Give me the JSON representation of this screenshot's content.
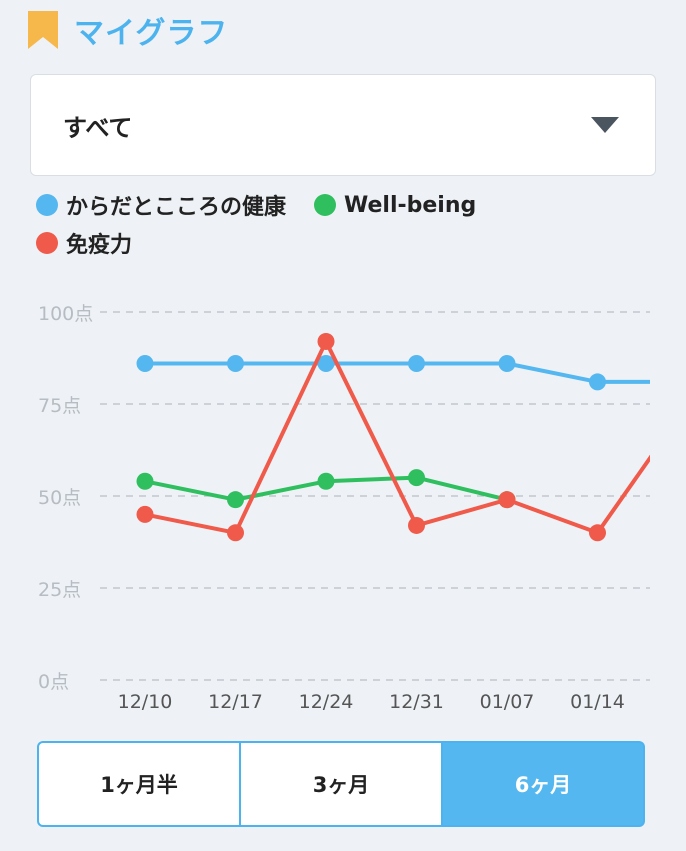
{
  "header": {
    "title": "マイグラフ",
    "icon": "bookmark-icon",
    "icon_color": "#f7b84b"
  },
  "category_select": {
    "value": "すべて"
  },
  "range_tabs": [
    {
      "label": "1ヶ月半",
      "active": false
    },
    {
      "label": "3ヶ月",
      "active": false
    },
    {
      "label": "6ヶ月",
      "active": true
    }
  ],
  "chart_data": {
    "type": "line",
    "x": [
      "12/10",
      "12/17",
      "12/24",
      "12/31",
      "01/07",
      "01/14",
      ""
    ],
    "ylim": [
      0,
      100
    ],
    "y_ticks": [
      {
        "value": 0,
        "label": "0点"
      },
      {
        "value": 25,
        "label": "25点"
      },
      {
        "value": 50,
        "label": "50点"
      },
      {
        "value": 75,
        "label": "75点"
      },
      {
        "value": 100,
        "label": "100点"
      }
    ],
    "grid": true,
    "legend_position": "top-left",
    "series": [
      {
        "name": "からだとこころの健康",
        "color": "#55b7f0",
        "values": [
          86,
          86,
          86,
          86,
          86,
          81,
          81
        ]
      },
      {
        "name": "Well-being",
        "color": "#2fbf5f",
        "values": [
          54,
          49,
          54,
          55,
          49,
          null,
          null
        ]
      },
      {
        "name": "免疫力",
        "color": "#f05a4a",
        "values": [
          45,
          40,
          92,
          42,
          49,
          40,
          75
        ]
      }
    ]
  }
}
